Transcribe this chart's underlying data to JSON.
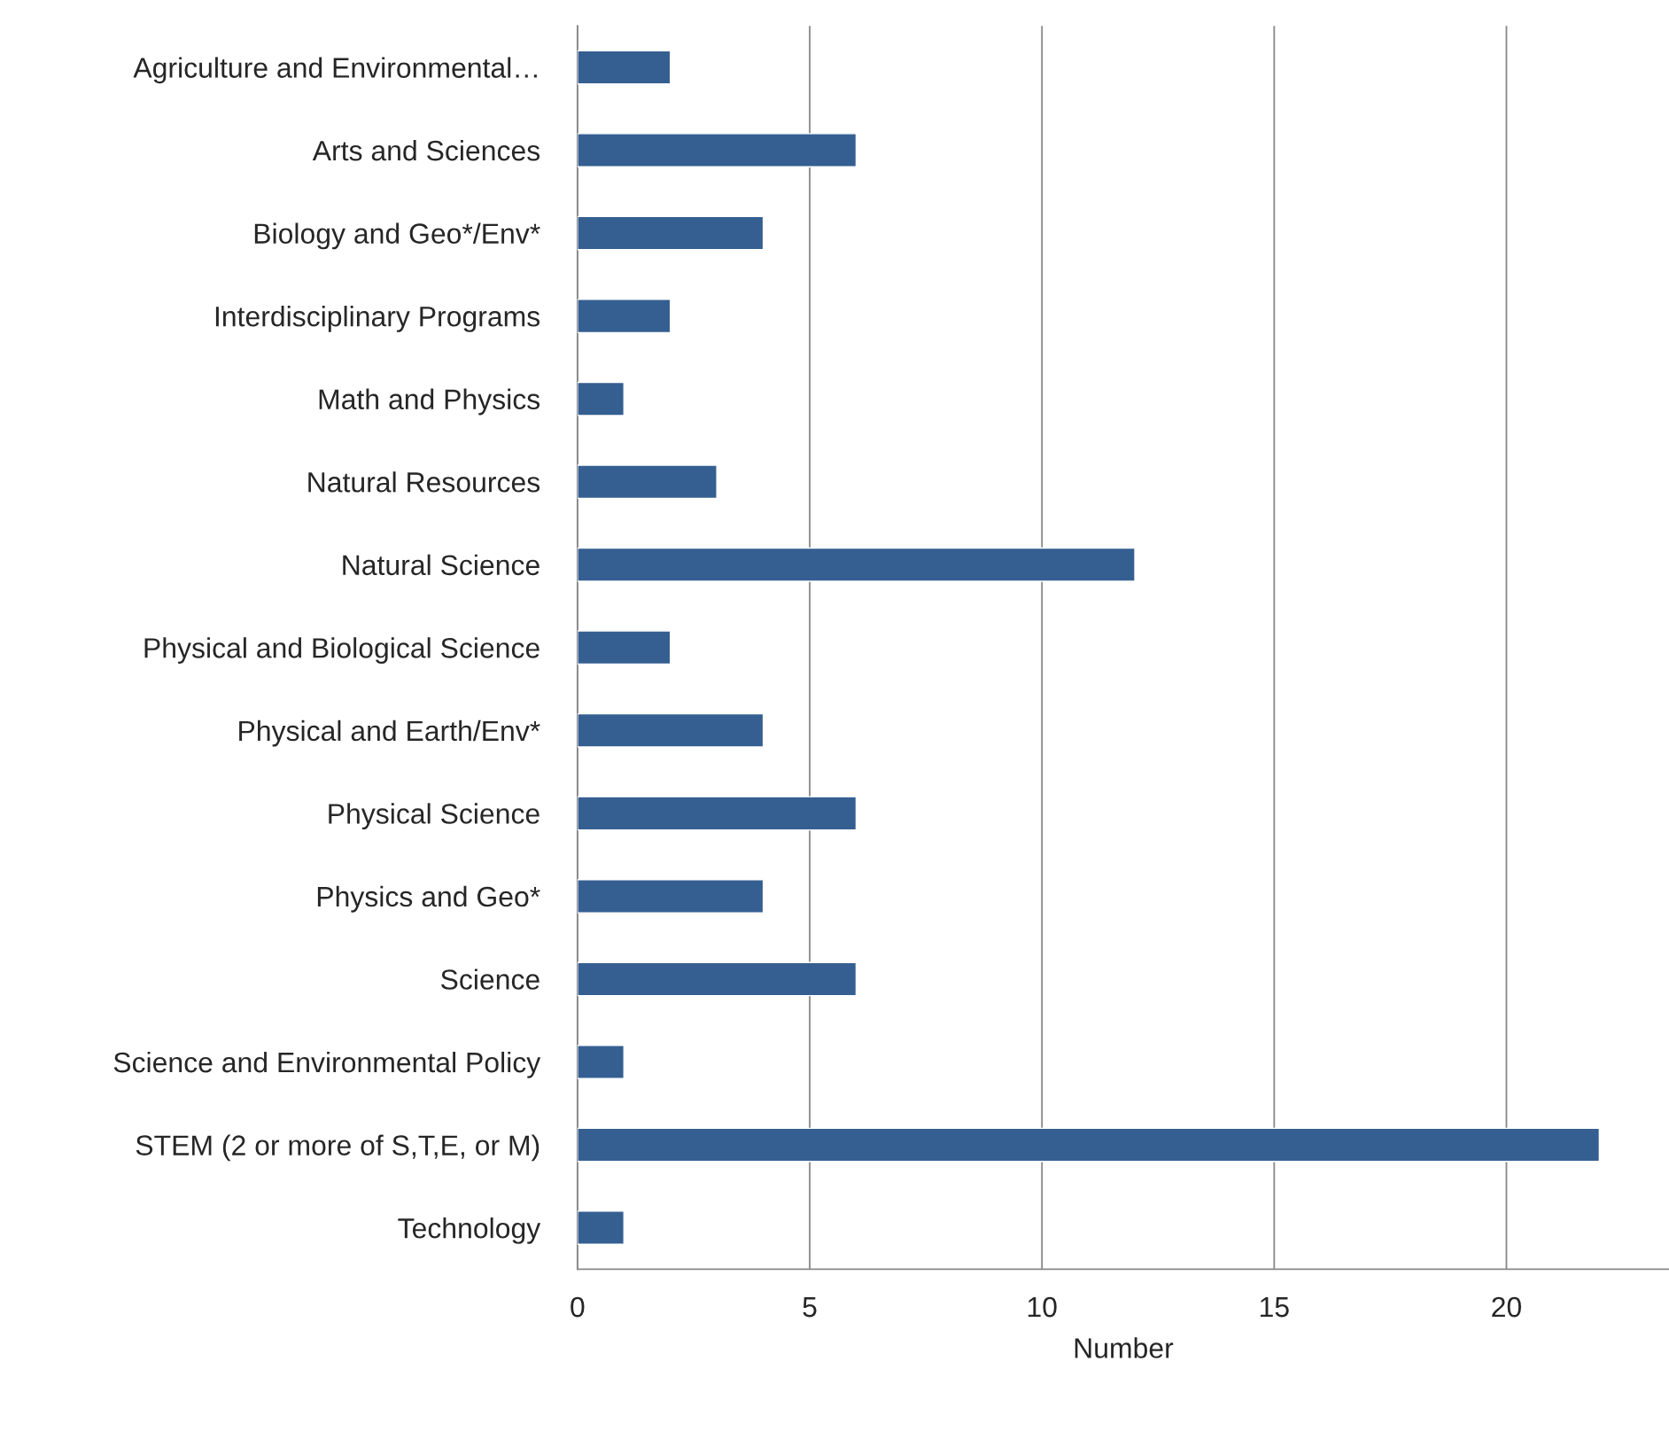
{
  "chart_data": {
    "type": "bar",
    "orientation": "horizontal",
    "xlabel": "Number",
    "categories": [
      "Agriculture and Environmental…",
      "Arts and Sciences",
      "Biology and Geo*/Env*",
      "Interdisciplinary Programs",
      "Math and Physics",
      "Natural Resources",
      "Natural Science",
      "Physical and Biological Science",
      "Physical and Earth/Env*",
      "Physical Science",
      "Physics and Geo*",
      "Science",
      "Science and Environmental Policy",
      "STEM (2 or more of S,T,E, or M)",
      "Technology"
    ],
    "values": [
      2,
      6,
      4,
      2,
      1,
      3,
      12,
      2,
      4,
      6,
      4,
      6,
      1,
      22,
      1
    ],
    "color": "#355f91",
    "xlim": [
      0,
      23.5
    ],
    "xticks": [
      0,
      5,
      10,
      15,
      20
    ],
    "grid": "x",
    "legend": false
  }
}
